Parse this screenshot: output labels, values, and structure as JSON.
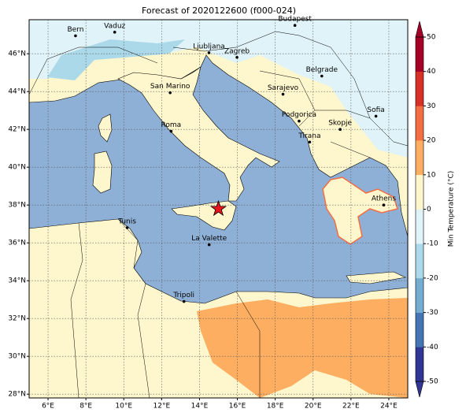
{
  "map": {
    "title": "Forecast of 2020122600 (f000-024)",
    "lon_range": [
      5,
      25
    ],
    "lat_range": [
      27.8,
      47.8
    ],
    "lon_ticks": [
      {
        "value": 6,
        "label": "6°E"
      },
      {
        "value": 8,
        "label": "8°E"
      },
      {
        "value": 10,
        "label": "10°E"
      },
      {
        "value": 12,
        "label": "12°E"
      },
      {
        "value": 14,
        "label": "14°E"
      },
      {
        "value": 16,
        "label": "16°E"
      },
      {
        "value": 18,
        "label": "18°E"
      },
      {
        "value": 20,
        "label": "20°E"
      },
      {
        "value": 22,
        "label": "22°E"
      },
      {
        "value": 24,
        "label": "24°E"
      }
    ],
    "lat_ticks": [
      {
        "value": 28,
        "label": "28°N"
      },
      {
        "value": 30,
        "label": "30°N"
      },
      {
        "value": 32,
        "label": "32°N"
      },
      {
        "value": 34,
        "label": "34°N"
      },
      {
        "value": 36,
        "label": "36°N"
      },
      {
        "value": 38,
        "label": "38°N"
      },
      {
        "value": 40,
        "label": "40°N"
      },
      {
        "value": 42,
        "label": "42°N"
      },
      {
        "value": 44,
        "label": "44°N"
      },
      {
        "value": 46,
        "label": "46°N"
      }
    ],
    "grid": true,
    "cities": [
      {
        "name": "Bern",
        "lon": 7.45,
        "lat": 46.95
      },
      {
        "name": "Vaduz",
        "lon": 9.52,
        "lat": 47.14
      },
      {
        "name": "Budapest",
        "lon": 19.04,
        "lat": 47.5
      },
      {
        "name": "Ljubljana",
        "lon": 14.5,
        "lat": 46.05
      },
      {
        "name": "Zagreb",
        "lon": 15.98,
        "lat": 45.81
      },
      {
        "name": "Belgrade",
        "lon": 20.46,
        "lat": 44.82
      },
      {
        "name": "Sarajevo",
        "lon": 18.41,
        "lat": 43.86
      },
      {
        "name": "San Marino",
        "lon": 12.45,
        "lat": 43.94
      },
      {
        "name": "Sofia",
        "lon": 23.32,
        "lat": 42.7
      },
      {
        "name": "Podgorica",
        "lon": 19.26,
        "lat": 42.44
      },
      {
        "name": "Skopje",
        "lon": 21.43,
        "lat": 42.0
      },
      {
        "name": "Roma",
        "lon": 12.5,
        "lat": 41.9
      },
      {
        "name": "Tirana",
        "lon": 19.82,
        "lat": 41.33
      },
      {
        "name": "Athens",
        "lon": 23.73,
        "lat": 38.0
      },
      {
        "name": "Tunis",
        "lon": 10.18,
        "lat": 36.8
      },
      {
        "name": "La Valette",
        "lon": 14.51,
        "lat": 35.9
      },
      {
        "name": "Tripoli",
        "lon": 13.18,
        "lat": 32.9
      }
    ],
    "marker": {
      "lon": 15.0,
      "lat": 37.8,
      "color": "#e8141b"
    },
    "colorbar": {
      "label": "Min Temperature (°C)",
      "lim": [
        -50,
        50
      ],
      "ticks": [
        -50,
        -40,
        -30,
        -20,
        -10,
        0,
        10,
        20,
        30,
        40,
        50
      ],
      "colors": [
        "#313695",
        "#4575b4",
        "#74add1",
        "#abd9e9",
        "#e0f3f8",
        "#fef6cc",
        "#fdae61",
        "#f46d43",
        "#d73027",
        "#a50026"
      ]
    }
  }
}
